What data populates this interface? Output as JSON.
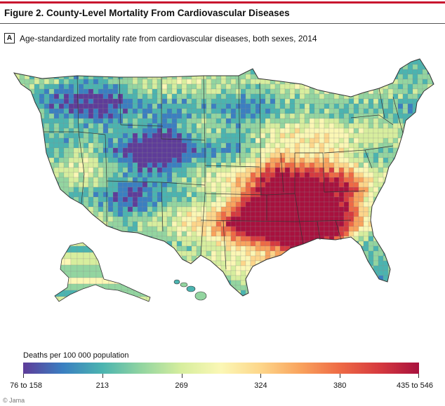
{
  "figure": {
    "title": "Figure 2. County-Level Mortality From Cardiovascular Diseases",
    "panel": "A",
    "panel_label": "Age-standardized mortality rate from cardiovascular diseases, both sexes, 2014"
  },
  "legend": {
    "title": "Deaths per 100 000 population",
    "ticks": [
      "76 to 158",
      "213",
      "269",
      "324",
      "380",
      "435 to 546"
    ],
    "colors": [
      "#5e3c99",
      "#3a7fc1",
      "#4bb4b0",
      "#93d5a0",
      "#d7ee9e",
      "#fbf7b5",
      "#fdd68a",
      "#f9a35d",
      "#ee6a45",
      "#d63a3f",
      "#a8113e"
    ]
  },
  "credit": "© Jama",
  "map": {
    "colors": {
      "ocean": "#ffffff",
      "border": "#333333",
      "county_line": "#8a8a8a"
    }
  }
}
